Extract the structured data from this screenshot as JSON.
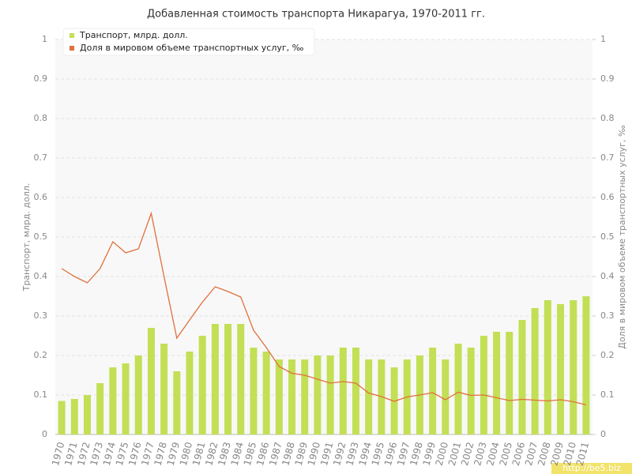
{
  "chart_data": {
    "type": "bar_line",
    "title": "Добавленная стоимость транспорта Никарагуа, 1970-2011 гг.",
    "y_label": "Транспорт, млрд. долл.",
    "y2_label": "Доля в мировом объеме транспортных услуг, ‰",
    "watermark": "http://be5.biz",
    "categories": [
      "1970",
      "1971",
      "1972",
      "1973",
      "1974",
      "1975",
      "1976",
      "1977",
      "1978",
      "1979",
      "1980",
      "1981",
      "1982",
      "1983",
      "1984",
      "1985",
      "1986",
      "1987",
      "1988",
      "1989",
      "1990",
      "1991",
      "1992",
      "1993",
      "1994",
      "1995",
      "1996",
      "1997",
      "1998",
      "1999",
      "2000",
      "2001",
      "2002",
      "2003",
      "2004",
      "2005",
      "2006",
      "2007",
      "2008",
      "2009",
      "2010",
      "2011"
    ],
    "series": [
      {
        "name": "Транспорт, млрд. долл.",
        "type": "bar",
        "color": "#c3df55",
        "values": [
          0.085,
          0.09,
          0.1,
          0.13,
          0.17,
          0.18,
          0.2,
          0.27,
          0.23,
          0.16,
          0.21,
          0.25,
          0.28,
          0.28,
          0.28,
          0.22,
          0.21,
          0.19,
          0.19,
          0.19,
          0.2,
          0.2,
          0.22,
          0.22,
          0.19,
          0.19,
          0.17,
          0.19,
          0.2,
          0.22,
          0.19,
          0.23,
          0.22,
          0.25,
          0.26,
          0.26,
          0.29,
          0.32,
          0.34,
          0.33,
          0.34,
          0.35
        ]
      },
      {
        "name": "Доля в мировом объеме транспортных услуг, ‰",
        "type": "line",
        "axis": "y2",
        "color": "#e0703c",
        "values": [
          0.42,
          0.4,
          0.384,
          0.42,
          0.488,
          0.46,
          0.47,
          0.56,
          0.4,
          0.244,
          0.29,
          0.335,
          0.374,
          0.362,
          0.348,
          0.264,
          0.22,
          0.172,
          0.155,
          0.15,
          0.14,
          0.13,
          0.134,
          0.13,
          0.105,
          0.096,
          0.084,
          0.095,
          0.1,
          0.106,
          0.088,
          0.107,
          0.099,
          0.1,
          0.093,
          0.086,
          0.089,
          0.087,
          0.085,
          0.088,
          0.083,
          0.075
        ]
      }
    ],
    "ylim": [
      0,
      1
    ],
    "yticks": [
      0,
      0.1,
      0.2,
      0.3,
      0.4,
      0.5,
      0.6,
      0.7,
      0.8,
      0.9,
      1
    ],
    "y2lim": [
      0,
      1
    ],
    "y2ticks": [
      0,
      0.1,
      0.2,
      0.3,
      0.4,
      0.5,
      0.6,
      0.7,
      0.8,
      0.9,
      1
    ],
    "grid": true,
    "legend": "top-left"
  }
}
